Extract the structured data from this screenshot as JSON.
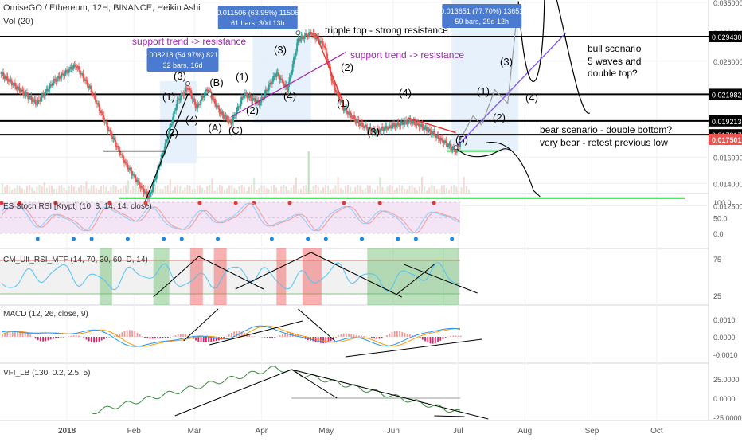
{
  "chart_data": {
    "type": "candlestick",
    "symbol_title": "OmiseGO / Ethereum, 12H, BINANCE, Heikin Ashi",
    "volume_label": "Vol (20)",
    "x_axis": {
      "ticks": [
        "2018",
        "Feb",
        "Mar",
        "Apr",
        "May",
        "Jun",
        "Jul",
        "Aug",
        "Sep",
        "Oct"
      ],
      "range": [
        "2017-12-01",
        "2018-10-25"
      ]
    },
    "y_axis": {
      "ticks": [
        "0.035000",
        "0.030000",
        "0.026000",
        "0.022000",
        "0.016000",
        "0.014000",
        "0.012500"
      ],
      "range": [
        0.0118,
        0.036
      ],
      "scale": "log"
    },
    "price_lines": [
      {
        "value": 0.02943,
        "label": "0.029430"
      },
      {
        "value": 0.021982,
        "label": "0.021982"
      },
      {
        "value": 0.019213,
        "label": "0.019213"
      },
      {
        "value": 0.017917,
        "label": "0.017917"
      },
      {
        "value": 0.017498,
        "label": "0.017498",
        "color": "#f48fb1"
      },
      {
        "value": 0.017501,
        "label": "0.017501",
        "color": "#ef5350"
      }
    ],
    "green_levels": [
      0.013,
      0.0165
    ],
    "price_path": [
      [
        "2017-12-01",
        0.0245
      ],
      [
        "2017-12-10",
        0.0225
      ],
      [
        "2017-12-18",
        0.021
      ],
      [
        "2017-12-26",
        0.0235
      ],
      [
        "2018-01-05",
        0.0255
      ],
      [
        "2018-01-12",
        0.0225
      ],
      [
        "2018-01-20",
        0.0185
      ],
      [
        "2018-01-28",
        0.0155
      ],
      [
        "2018-02-04",
        0.0138
      ],
      [
        "2018-02-08",
        0.013
      ],
      [
        "2018-02-12",
        0.015
      ],
      [
        "2018-02-17",
        0.018
      ],
      [
        "2018-02-21",
        0.0212
      ],
      [
        "2018-02-26",
        0.0228
      ],
      [
        "2018-03-02",
        0.0205
      ],
      [
        "2018-03-07",
        0.0226
      ],
      [
        "2018-03-13",
        0.02
      ],
      [
        "2018-03-18",
        0.019
      ],
      [
        "2018-03-24",
        0.022
      ],
      [
        "2018-03-31",
        0.021
      ],
      [
        "2018-04-08",
        0.0245
      ],
      [
        "2018-04-13",
        0.0225
      ],
      [
        "2018-04-18",
        0.029
      ],
      [
        "2018-04-24",
        0.03
      ],
      [
        "2018-04-30",
        0.0282
      ],
      [
        "2018-05-04",
        0.0232
      ],
      [
        "2018-05-09",
        0.0205
      ],
      [
        "2018-05-16",
        0.019
      ],
      [
        "2018-05-23",
        0.0182
      ],
      [
        "2018-06-02",
        0.0188
      ],
      [
        "2018-06-09",
        0.0192
      ],
      [
        "2018-06-16",
        0.0185
      ],
      [
        "2018-06-23",
        0.0175
      ],
      [
        "2018-06-30",
        0.0165
      ],
      [
        "2018-07-02",
        0.0172
      ]
    ],
    "annotations": [
      {
        "text": "tripple top - strong resistance",
        "color": "#000000"
      },
      {
        "text": "support trend -> resistance",
        "color": "#9c27b0"
      },
      {
        "text": "support trend -> resistance",
        "color": "#9c27b0"
      },
      {
        "text": "bull scenario",
        "color": "#000000"
      },
      {
        "text": "5 waves and",
        "color": "#000000"
      },
      {
        "text": "double top?",
        "color": "#000000"
      },
      {
        "text": "bear scenario - double bottom?",
        "color": "#000000"
      },
      {
        "text": "very bear - retest previous low",
        "color": "#000000"
      }
    ],
    "wave_labels": [
      "(1)",
      "(2)",
      "(3)",
      "(4)",
      "(A)",
      "(B)",
      "(C)",
      "(1)",
      "(2)",
      "(3)",
      "(4)",
      "(1)",
      "(2)",
      "(3)",
      "(4)",
      "(5)",
      "(1)",
      "(2)",
      "(3)",
      "(4)"
    ],
    "measure_boxes": [
      {
        "line1": "0.008218 (54.97%) 8218",
        "line2": "32 bars, 16d"
      },
      {
        "line1": "0.011506 (63.95%) 11506",
        "line2": "61 bars, 30d 13h"
      },
      {
        "line1": "0.013651 (77.70%) 13651",
        "line2": "59 bars, 29d 12h"
      }
    ],
    "panes": [
      {
        "name": "ES Stoch RSI [Krypt] (10, 3, 14, 14, close)",
        "ticks": [
          "100.0",
          "50.0",
          "0.0"
        ]
      },
      {
        "name": "CM_Ult_RSI_MTF (14, 70, 30, 60, D, 14)",
        "ticks": [
          "75",
          "25"
        ]
      },
      {
        "name": "MACD (12, 26, close, 9)",
        "ticks": [
          "0.0010",
          "0.0000",
          "-0.0010"
        ]
      },
      {
        "name": "VFI_LB (130, 0.2, 2.5, 5)",
        "ticks": [
          "25.0000",
          "0.0000",
          "-25.0000"
        ]
      }
    ]
  }
}
